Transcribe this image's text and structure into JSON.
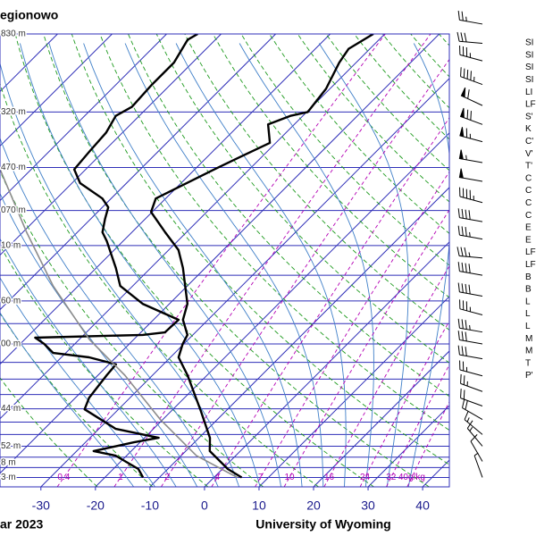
{
  "chart_data": {
    "type": "skewt",
    "title": "egionowo",
    "footer_left": "ar 2023",
    "footer_right": "University of Wyoming",
    "xlim": [
      -37.5,
      44.9
    ],
    "xticks": [
      -30,
      -20,
      -10,
      0,
      10,
      20,
      30,
      40
    ],
    "ylim": [
      1050,
      100
    ],
    "log_y": true,
    "yticks": [
      {
        "value": 100,
        "label": "830 m"
      },
      {
        "value": 150,
        "label": "320 m"
      },
      {
        "value": 200,
        "label": "470 m"
      },
      {
        "value": 250,
        "label": "070 m"
      },
      {
        "value": 300,
        "label": "10 m"
      },
      {
        "value": 400,
        "label": "60 m"
      },
      {
        "value": 500,
        "label": "00 m"
      },
      {
        "value": 700,
        "label": "44 m"
      },
      {
        "value": 850,
        "label": "52 m"
      },
      {
        "value": 925,
        "label": "8 m"
      },
      {
        "value": 1000,
        "label": "3 m"
      }
    ],
    "isobars": [
      100,
      150,
      200,
      250,
      300,
      350,
      400,
      450,
      500,
      550,
      600,
      650,
      700,
      750,
      800,
      850,
      900,
      950,
      1000,
      1050
    ],
    "isotherms": [
      -110,
      -100,
      -90,
      -80,
      -70,
      -60,
      -50,
      -40,
      -30,
      -20,
      -10,
      0,
      10,
      20,
      30,
      40
    ],
    "dry_adiabats": [
      250,
      260,
      270,
      280,
      290,
      300,
      310,
      320,
      330,
      340,
      350,
      360,
      370,
      380,
      390,
      400,
      410,
      420,
      430,
      440,
      450,
      460,
      470,
      480
    ],
    "moist_adiabats": [
      -16,
      -12,
      -8,
      -4,
      0,
      4,
      8,
      12,
      16,
      20,
      24,
      28,
      32,
      36
    ],
    "mixing_ratios": {
      "values": [
        0.4,
        1,
        2,
        4,
        7,
        10,
        16,
        24,
        32,
        40
      ],
      "labels": [
        "0.4",
        "1",
        "2",
        "4",
        "7",
        "10",
        "16",
        "24",
        "32",
        "40g/kg"
      ]
    },
    "colors": {
      "isobar": "#2f2fb8",
      "isotherm": "#2f2fb8",
      "dry": "#1e9a1e",
      "moist": "#3f7fc8",
      "mixing": "#b400b4",
      "axis_label": "#1a1a8c"
    },
    "series": [
      {
        "color": "#000000",
        "pressure": [
          100,
          108,
          116,
          133,
          150,
          153,
          160,
          176,
          189,
          202,
          235,
          252,
          280,
          307,
          337,
          406,
          441,
          477,
          500,
          536,
          588,
          708,
          814,
          872,
          957,
          1000
        ],
        "values": [
          -52.1,
          -53.9,
          -53.1,
          -50.7,
          -49.8,
          -52.3,
          -54.8,
          -51.1,
          -53.9,
          -56.4,
          -61.8,
          -60.2,
          -53.9,
          -48.2,
          -44.1,
          -36.7,
          -34.6,
          -31.0,
          -30.2,
          -28.5,
          -23.6,
          -14.6,
          -8.0,
          -5.6,
          1.0,
          5.1
        ]
      },
      {
        "color": "#000000",
        "pressure": [
          100,
          103,
          116,
          130,
          146,
          153,
          167,
          184,
          202,
          217,
          235,
          246,
          261,
          280,
          293,
          337,
          370,
          406,
          441,
          471,
          477,
          484,
          500,
          524,
          536,
          556,
          588,
          661,
          702,
          777,
          814,
          833,
          872,
          893,
          957,
          1000
        ],
        "values": [
          -84.3,
          -85.1,
          -83.4,
          -83.4,
          -83.0,
          -84.3,
          -83.0,
          -82.6,
          -82.1,
          -78.5,
          -71.6,
          -68.9,
          -67.4,
          -65.4,
          -63.0,
          -56.4,
          -52.3,
          -44.9,
          -35.4,
          -35.6,
          -39.2,
          -58.4,
          -55.6,
          -52.3,
          -44.9,
          -38.7,
          -38.4,
          -37.5,
          -36.2,
          -26.9,
          -17.4,
          -21.1,
          -26.9,
          -22.0,
          -15.4,
          -13.0
        ]
      },
      {
        "color": "#8c8c8c",
        "pressure": [
          202,
          280,
          370,
          488,
          588,
          742,
          893,
          1000
        ],
        "values": [
          -95.7,
          -79.3,
          -64.6,
          -48.2,
          -35.1,
          -20.3,
          -7.2,
          4.3
        ]
      }
    ],
    "winds": {
      "pressure": [
        95,
        105,
        115,
        130,
        145,
        160,
        175,
        195,
        215,
        240,
        265,
        290,
        320,
        350,
        390,
        430,
        470,
        500,
        540,
        590,
        640,
        690,
        740,
        800,
        850,
        920,
        1000
      ],
      "direction": [
        280,
        275,
        285,
        290,
        295,
        290,
        285,
        280,
        280,
        285,
        280,
        280,
        275,
        280,
        280,
        285,
        280,
        280,
        280,
        285,
        290,
        290,
        300,
        310,
        320,
        330,
        340
      ],
      "speed": [
        25,
        30,
        35,
        45,
        60,
        70,
        65,
        55,
        50,
        45,
        40,
        35,
        35,
        40,
        40,
        35,
        35,
        30,
        30,
        25,
        25,
        20,
        20,
        15,
        15,
        10,
        5
      ]
    },
    "indices": [
      "SI",
      "SI",
      "SI",
      "SI",
      "LI",
      "LF",
      "S'",
      "K",
      "C'",
      "V'",
      "T'",
      "C",
      "C",
      "C",
      "C",
      "E",
      "E",
      "LF",
      "LF",
      "B",
      "B",
      "L",
      "L",
      "L",
      "M",
      "M",
      "T",
      "P'"
    ]
  }
}
